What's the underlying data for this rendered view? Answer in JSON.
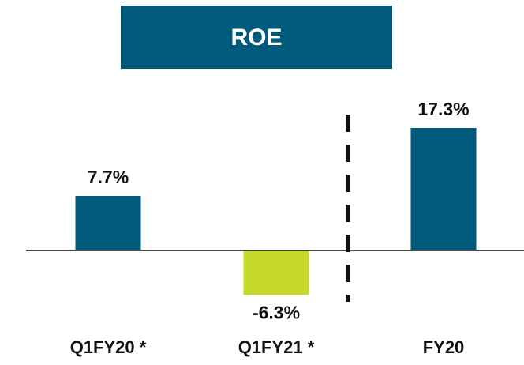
{
  "chart_data": {
    "type": "bar",
    "title": "ROE",
    "categories": [
      "Q1FY20 *",
      "Q1FY21 *",
      "FY20"
    ],
    "values": [
      7.7,
      -6.3,
      17.3
    ],
    "value_labels": [
      "7.7%",
      "-6.3%",
      "17.3%"
    ],
    "colors": [
      "#005a7c",
      "#c5d92d",
      "#005a7c"
    ]
  }
}
